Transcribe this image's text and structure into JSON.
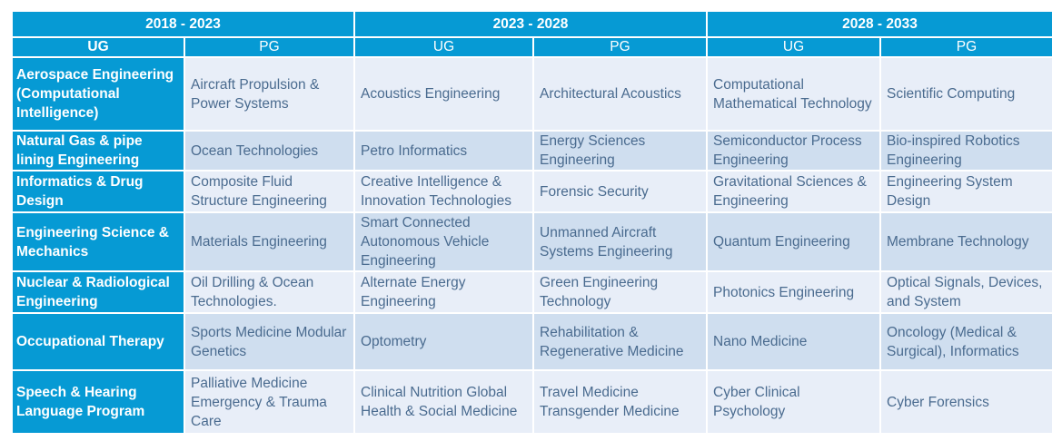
{
  "periods": [
    "2018 - 2023",
    "2023 - 2028",
    "2028 - 2033"
  ],
  "levels": [
    "UG",
    "PG",
    "UG",
    "PG",
    "UG",
    "PG"
  ],
  "rows": [
    {
      "program": "Aerospace Engineering (Computational Intelligence)",
      "cells": [
        "Aircraft Propulsion & Power Systems",
        "Acoustics Engineering",
        "Architectural Acoustics",
        "Computational Mathematical Technology",
        "Scientific Computing"
      ]
    },
    {
      "program": "Natural Gas & pipe lining Engineering",
      "cells": [
        "Ocean Technologies",
        "Petro Informatics",
        "Energy Sciences Engineering",
        "Semiconductor Process Engineering",
        "Bio-inspired Robotics Engineering"
      ]
    },
    {
      "program": "Informatics & Drug Design",
      "cells": [
        "Composite Fluid Structure Engineering",
        "Creative Intelligence & Innovation Technologies",
        "Forensic Security",
        "Gravitational Sciences & Engineering",
        "Engineering System Design"
      ]
    },
    {
      "program": "Engineering Science & Mechanics",
      "cells": [
        "Materials Engineering",
        "Smart Connected Autonomous Vehicle Engineering",
        "Unmanned Aircraft Systems Engineering",
        "Quantum Engineering",
        "Membrane Technology"
      ]
    },
    {
      "program": "Nuclear & Radiological Engineering",
      "cells": [
        "Oil Drilling & Ocean Technologies.",
        "Alternate Energy Engineering",
        "Green Engineering Technology",
        "Photonics Engineering",
        "Optical Signals, Devices, and System"
      ]
    },
    {
      "program": "Occupational Therapy",
      "cells": [
        "Sports Medicine Modular Genetics",
        "Optometry",
        "Rehabilitation & Regenerative Medicine",
        "Nano Medicine",
        "Oncology (Medical & Surgical), Informatics"
      ]
    },
    {
      "program": "Speech & Hearing Language Program",
      "cells": [
        "Palliative Medicine Emergency & Trauma Care",
        "Clinical Nutrition Global Health & Social Medicine",
        "Travel Medicine Transgender Medicine",
        "Cyber Clinical Psychology",
        "Cyber Forensics"
      ]
    }
  ]
}
